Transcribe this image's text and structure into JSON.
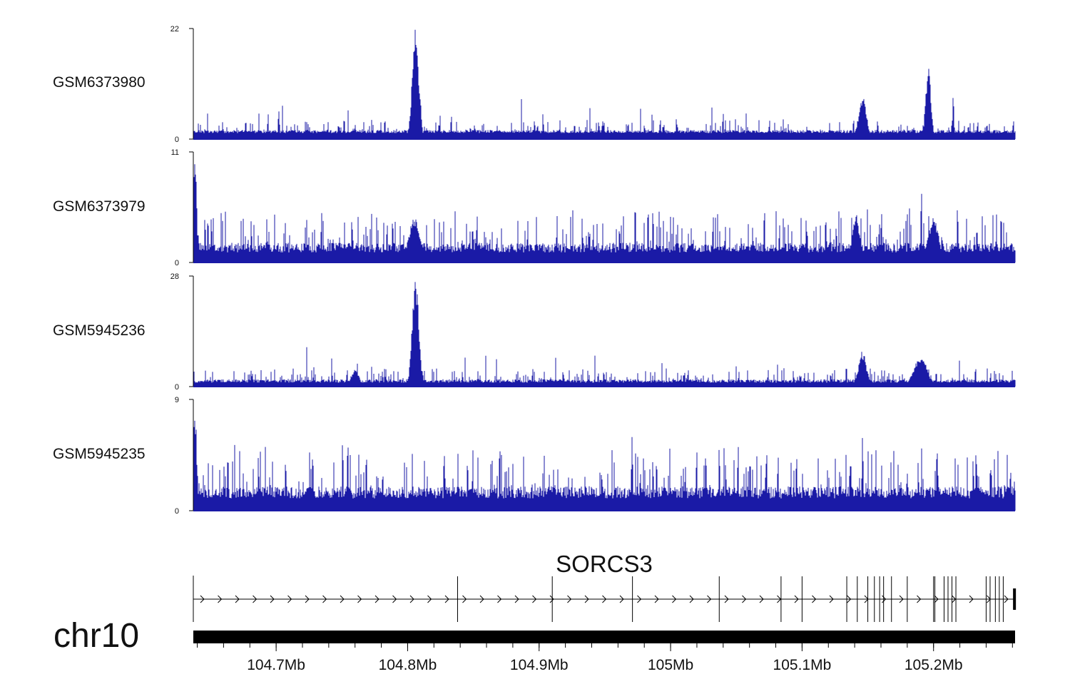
{
  "chart_data": {
    "type": "genome-browser-coverage",
    "chromosome": "chr10",
    "region": {
      "start": 104.637,
      "end": 105.262,
      "units": "Mb"
    },
    "x_ticks": [
      {
        "pos": 104.7,
        "label": "104.7Mb"
      },
      {
        "pos": 104.8,
        "label": "104.8Mb"
      },
      {
        "pos": 104.9,
        "label": "104.9Mb"
      },
      {
        "pos": 105.0,
        "label": "105Mb"
      },
      {
        "pos": 105.1,
        "label": "105.1Mb"
      },
      {
        "pos": 105.2,
        "label": "105.2Mb"
      }
    ],
    "bar_color": "#1a1aa6",
    "tracks": [
      {
        "name": "GSM6373980",
        "ymax": 22,
        "ymin": 0,
        "baseline": 1.2,
        "noise": 1.0,
        "peaks": [
          {
            "pos": 104.806,
            "height": 22,
            "width": 0.0025
          },
          {
            "pos": 105.146,
            "height": 8.5,
            "width": 0.003
          },
          {
            "pos": 105.196,
            "height": 14.3,
            "width": 0.002
          },
          {
            "pos": 104.702,
            "height": 5.8,
            "width": 0.0006
          },
          {
            "pos": 105.215,
            "height": 8.8,
            "width": 0.0006
          }
        ]
      },
      {
        "name": "GSM6373979",
        "ymax": 11,
        "ymin": 0,
        "baseline": 1.0,
        "noise": 1.6,
        "peaks": [
          {
            "pos": 104.638,
            "height": 11,
            "width": 0.0015
          },
          {
            "pos": 104.805,
            "height": 4.8,
            "width": 0.004
          },
          {
            "pos": 105.141,
            "height": 4.8,
            "width": 0.003
          },
          {
            "pos": 105.2,
            "height": 4.6,
            "width": 0.004
          }
        ]
      },
      {
        "name": "GSM5945236",
        "ymax": 28,
        "ymin": 0,
        "baseline": 1.0,
        "noise": 1.4,
        "peaks": [
          {
            "pos": 104.806,
            "height": 28,
            "width": 0.0025
          },
          {
            "pos": 105.146,
            "height": 9,
            "width": 0.003
          },
          {
            "pos": 105.19,
            "height": 8,
            "width": 0.005
          },
          {
            "pos": 104.76,
            "height": 4.5,
            "width": 0.003
          }
        ]
      },
      {
        "name": "GSM5945235",
        "ymax": 9,
        "ymin": 0,
        "baseline": 1.0,
        "noise": 1.6,
        "peaks": [
          {
            "pos": 104.638,
            "height": 9,
            "width": 0.0015
          },
          {
            "pos": 104.87,
            "height": 6.3,
            "width": 0.0004
          },
          {
            "pos": 105.146,
            "height": 6.3,
            "width": 0.0005
          }
        ]
      }
    ],
    "gene": {
      "name": "SORCS3",
      "start": 104.637,
      "end": 105.262,
      "strand": "+",
      "exons": [
        104.637,
        104.838,
        104.91,
        104.971,
        105.037,
        105.084,
        105.1,
        105.134,
        105.142,
        105.15,
        105.155,
        105.159,
        105.162,
        105.168,
        105.18,
        105.2,
        105.201,
        105.208,
        105.211,
        105.214,
        105.217,
        105.24,
        105.243,
        105.247,
        105.25,
        105.253,
        105.261
      ]
    }
  }
}
